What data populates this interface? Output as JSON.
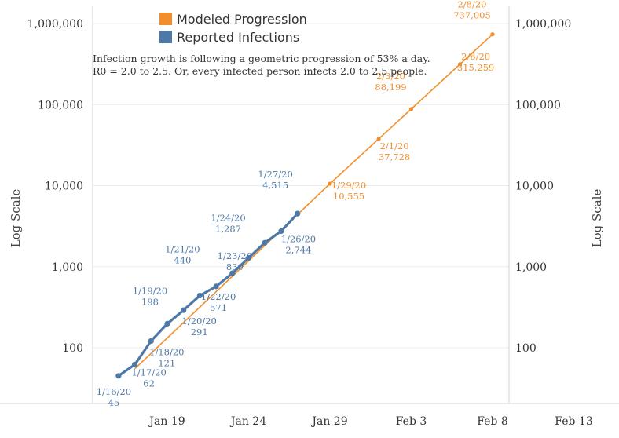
{
  "chart_data": {
    "type": "line",
    "title": "",
    "xlabel": "",
    "ylabel": "Log Scale",
    "y_scale": "log",
    "ylim": [
      30,
      1000000
    ],
    "y_ticks": [
      "100",
      "1,000",
      "10,000",
      "100,000",
      "1,000,000"
    ],
    "x_ticks": [
      "Jan 19",
      "Jan 24",
      "Jan 29",
      "Feb 3",
      "Feb 8",
      "Feb 13"
    ],
    "legend": [
      {
        "name": "Modeled Progression",
        "color": "#f28e2b"
      },
      {
        "name": "Reported Infections",
        "color": "#4e79a7"
      }
    ],
    "annotation": [
      "Infection growth is following a geometric progression of 53% a day.",
      "R0 = 2.0 to 2.5. Or, every infected person infects 2.0 to 2.5 people."
    ],
    "series": [
      {
        "name": "Reported Infections",
        "color": "#4e79a7",
        "points": [
          {
            "date": "1/16/20",
            "day": 16,
            "value": 45
          },
          {
            "date": "1/17/20",
            "day": 17,
            "value": 62
          },
          {
            "date": "1/18/20",
            "day": 18,
            "value": 121
          },
          {
            "date": "1/19/20",
            "day": 19,
            "value": 198
          },
          {
            "date": "1/20/20",
            "day": 20,
            "value": 291
          },
          {
            "date": "1/21/20",
            "day": 21,
            "value": 440
          },
          {
            "date": "1/22/20",
            "day": 22,
            "value": 571
          },
          {
            "date": "1/23/20",
            "day": 23,
            "value": 830
          },
          {
            "date": "1/24/20",
            "day": 24,
            "value": 1287
          },
          {
            "date": "1/25/20",
            "day": 25,
            "value": 1975
          },
          {
            "date": "1/26/20",
            "day": 26,
            "value": 2744
          },
          {
            "date": "1/27/20",
            "day": 27,
            "value": 4515
          }
        ]
      },
      {
        "name": "Modeled Progression",
        "color": "#f28e2b",
        "points": [
          {
            "date": "1/17/20",
            "day": 17,
            "value": 55
          },
          {
            "date": "1/29/20",
            "day": 29,
            "value": 10555
          },
          {
            "date": "2/1/20",
            "day": 32,
            "value": 37728
          },
          {
            "date": "2/3/20",
            "day": 34,
            "value": 88199
          },
          {
            "date": "2/6/20",
            "day": 37,
            "value": 315259
          },
          {
            "date": "2/8/20",
            "day": 39,
            "value": 737005
          }
        ]
      }
    ],
    "data_labels": [
      {
        "series": "Reported Infections",
        "date": "1/16/20",
        "value": "45"
      },
      {
        "series": "Reported Infections",
        "date": "1/17/20",
        "value": "62"
      },
      {
        "series": "Reported Infections",
        "date": "1/18/20",
        "value": "121"
      },
      {
        "series": "Reported Infections",
        "date": "1/19/20",
        "value": "198"
      },
      {
        "series": "Reported Infections",
        "date": "1/20/20",
        "value": "291"
      },
      {
        "series": "Reported Infections",
        "date": "1/21/20",
        "value": "440"
      },
      {
        "series": "Reported Infections",
        "date": "1/22/20",
        "value": "571"
      },
      {
        "series": "Reported Infections",
        "date": "1/23/20",
        "value": "830"
      },
      {
        "series": "Reported Infections",
        "date": "1/24/20",
        "value": "1,287"
      },
      {
        "series": "Reported Infections",
        "date": "1/26/20",
        "value": "2,744"
      },
      {
        "series": "Reported Infections",
        "date": "1/27/20",
        "value": "4,515"
      },
      {
        "series": "Modeled Progression",
        "date": "1/29/20",
        "value": "10,555"
      },
      {
        "series": "Modeled Progression",
        "date": "2/1/20",
        "value": "37,728"
      },
      {
        "series": "Modeled Progression",
        "date": "2/3/20",
        "value": "88,199"
      },
      {
        "series": "Modeled Progression",
        "date": "2/6/20",
        "value": "315,259"
      },
      {
        "series": "Modeled Progression",
        "date": "2/8/20",
        "value": "737,005"
      }
    ]
  }
}
